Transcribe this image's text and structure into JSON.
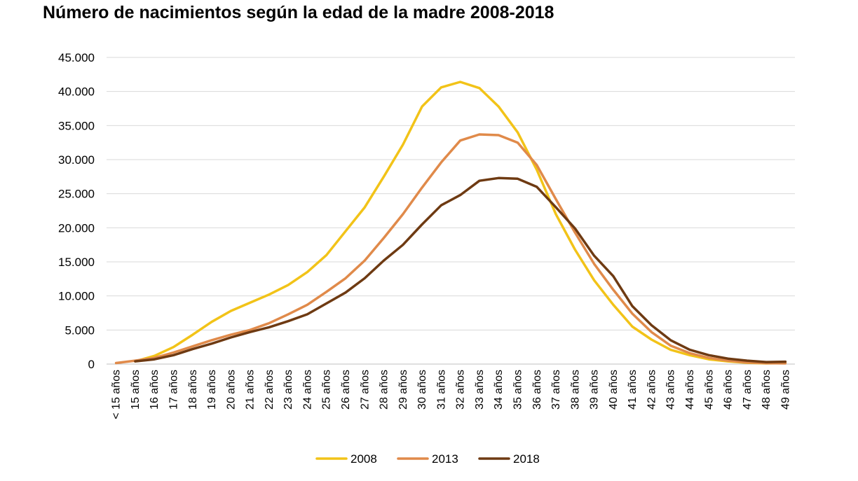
{
  "chart_data": {
    "type": "line",
    "title": "Número de nacimientos según la edad de la madre 2008-2018",
    "xlabel": "",
    "ylabel": "",
    "ylim": [
      0,
      45000
    ],
    "yticks": [
      0,
      5000,
      10000,
      15000,
      20000,
      25000,
      30000,
      35000,
      40000,
      45000
    ],
    "ytick_labels": [
      "0",
      "5.000",
      "10.000",
      "15.000",
      "20.000",
      "25.000",
      "30.000",
      "35.000",
      "40.000",
      "45.000"
    ],
    "grid": true,
    "legend_position": "bottom",
    "categories": [
      "< 15 años",
      "15 años",
      "16 años",
      "17 años",
      "18 años",
      "19 años",
      "20 años",
      "21 años",
      "22 años",
      "23 años",
      "24 años",
      "25 años",
      "26 años",
      "27 años",
      "28 años",
      "29 años",
      "30 años",
      "31 años",
      "32 años",
      "33 años",
      "34 años",
      "35 años",
      "36 años",
      "37 años",
      "38 años",
      "39 años",
      "40 años",
      "41 años",
      "42 años",
      "43 años",
      "44 años",
      "45 años",
      "46 años",
      "47 años",
      "48 años",
      "49 años"
    ],
    "series": [
      {
        "name": "2008",
        "color": "#f2c318",
        "values": [
          null,
          400,
          1200,
          2500,
          4300,
          6200,
          7800,
          9000,
          10200,
          11600,
          13500,
          16000,
          19500,
          23000,
          27500,
          32200,
          37800,
          40600,
          41400,
          40500,
          37800,
          34000,
          28500,
          22000,
          16800,
          12300,
          8700,
          5500,
          3600,
          2100,
          1300,
          700,
          400,
          200,
          100,
          150
        ]
      },
      {
        "name": "2013",
        "color": "#e08a4a",
        "values": [
          150,
          500,
          900,
          1700,
          2600,
          3500,
          4300,
          5000,
          6000,
          7300,
          8700,
          10600,
          12600,
          15200,
          18500,
          22000,
          25900,
          29600,
          32800,
          33700,
          33600,
          32500,
          29200,
          24200,
          19300,
          14700,
          10900,
          7400,
          4700,
          2700,
          1600,
          900,
          500,
          250,
          120,
          100
        ]
      },
      {
        "name": "2018",
        "color": "#6e3a12",
        "values": [
          null,
          400,
          700,
          1300,
          2200,
          3000,
          3900,
          4700,
          5400,
          6300,
          7300,
          8900,
          10500,
          12600,
          15200,
          17500,
          20500,
          23300,
          24800,
          26900,
          27300,
          27200,
          26000,
          23000,
          19900,
          15900,
          12900,
          8500,
          5700,
          3500,
          2100,
          1300,
          800,
          500,
          300,
          350
        ]
      }
    ]
  }
}
